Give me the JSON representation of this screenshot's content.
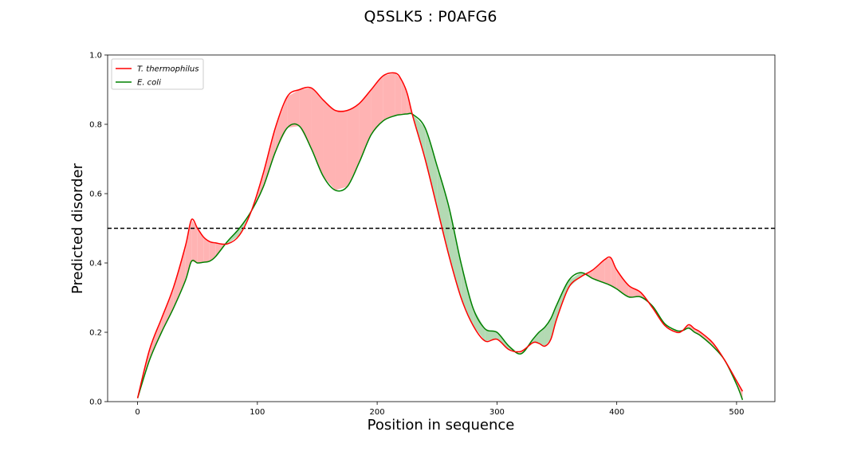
{
  "chart_data": {
    "type": "line",
    "title": "Q5SLK5 : P0AFG6",
    "xlabel": "Position in sequence",
    "ylabel": "Predicted disorder",
    "xlim": [
      -25,
      532
    ],
    "ylim": [
      0.0,
      1.0
    ],
    "xticks": [
      0,
      100,
      200,
      300,
      400,
      500
    ],
    "yticks": [
      0.0,
      0.2,
      0.4,
      0.6,
      0.8,
      1.0
    ],
    "threshold": 0.5,
    "legend_position": "top-left",
    "fill_colors": {
      "red_above": "#ffb3b3",
      "green_above": "#b3dab3"
    },
    "series": [
      {
        "name": "T. thermophilus",
        "color": "#ff0000",
        "x": [
          0,
          10,
          20,
          30,
          40,
          45,
          50,
          55,
          60,
          65,
          75,
          85,
          95,
          105,
          115,
          125,
          135,
          145,
          155,
          165,
          175,
          185,
          195,
          205,
          215,
          220,
          225,
          230,
          240,
          250,
          260,
          270,
          280,
          290,
          300,
          310,
          320,
          330,
          335,
          340,
          345,
          350,
          360,
          370,
          380,
          390,
          395,
          400,
          410,
          420,
          430,
          440,
          450,
          455,
          460,
          465,
          470,
          480,
          490,
          500,
          505
        ],
        "values": [
          0.01,
          0.15,
          0.24,
          0.33,
          0.45,
          0.525,
          0.5,
          0.475,
          0.462,
          0.458,
          0.455,
          0.48,
          0.55,
          0.66,
          0.79,
          0.88,
          0.9,
          0.905,
          0.87,
          0.84,
          0.84,
          0.86,
          0.9,
          0.94,
          0.948,
          0.93,
          0.89,
          0.82,
          0.7,
          0.56,
          0.42,
          0.3,
          0.22,
          0.175,
          0.18,
          0.15,
          0.145,
          0.17,
          0.168,
          0.16,
          0.18,
          0.24,
          0.33,
          0.36,
          0.38,
          0.41,
          0.415,
          0.38,
          0.335,
          0.315,
          0.27,
          0.22,
          0.2,
          0.205,
          0.222,
          0.21,
          0.2,
          0.17,
          0.12,
          0.06,
          0.03
        ]
      },
      {
        "name": "E. coli",
        "color": "#008000",
        "x": [
          0,
          10,
          20,
          30,
          40,
          45,
          50,
          55,
          60,
          65,
          75,
          85,
          95,
          105,
          115,
          125,
          135,
          145,
          155,
          165,
          175,
          185,
          195,
          205,
          215,
          220,
          225,
          230,
          240,
          250,
          260,
          270,
          280,
          290,
          300,
          310,
          320,
          330,
          335,
          340,
          345,
          350,
          360,
          370,
          380,
          390,
          395,
          400,
          410,
          420,
          430,
          440,
          450,
          455,
          460,
          465,
          470,
          480,
          490,
          500,
          505
        ],
        "values": [
          0.01,
          0.12,
          0.2,
          0.27,
          0.35,
          0.405,
          0.4,
          0.402,
          0.405,
          0.418,
          0.462,
          0.5,
          0.55,
          0.62,
          0.72,
          0.79,
          0.795,
          0.73,
          0.65,
          0.61,
          0.62,
          0.69,
          0.77,
          0.81,
          0.825,
          0.828,
          0.83,
          0.828,
          0.79,
          0.68,
          0.56,
          0.4,
          0.27,
          0.21,
          0.2,
          0.16,
          0.138,
          0.18,
          0.2,
          0.215,
          0.24,
          0.28,
          0.35,
          0.372,
          0.355,
          0.342,
          0.335,
          0.325,
          0.302,
          0.302,
          0.275,
          0.225,
          0.205,
          0.205,
          0.212,
          0.2,
          0.19,
          0.16,
          0.12,
          0.05,
          0.005
        ]
      }
    ]
  }
}
